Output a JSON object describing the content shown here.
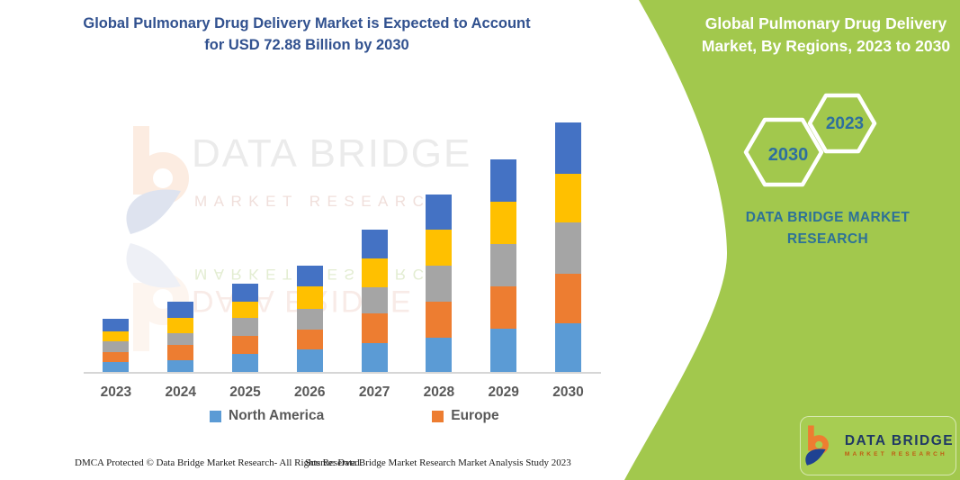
{
  "header": {
    "title_line1": "Global Pulmonary Drug Delivery Market is Expected to Account",
    "title_line2": "for USD 72.88 Billion by 2030"
  },
  "side_panel": {
    "title_line1": "Global Pulmonary Drug Delivery",
    "title_line2": "Market, By Regions, 2023 to 2030",
    "hexagon_back_label": "2030",
    "hexagon_front_label": "2023",
    "brand_line1": "DATA BRIDGE MARKET",
    "brand_line2": "RESEARCH",
    "background_color": "#A2C84D",
    "text_color": "#2D7198"
  },
  "watermark": {
    "brand": "DATA BRIDGE",
    "sub": "MARKET RESEARCH"
  },
  "footer": {
    "left": "DMCA Protected © Data Bridge Market Research-  All Rights Reserved.",
    "source": "Source: Data Bridge Market Research  Market Analysis Study 2023"
  },
  "logo_card": {
    "brand": "DATA BRIDGE",
    "sub": "MARKET RESEARCH"
  },
  "colors": {
    "title_blue": "#31518F",
    "panel_green": "#A2C84D",
    "axis_gray": "#D6D6D6",
    "label_gray": "#595959"
  },
  "chart_data": {
    "type": "bar",
    "stacked": true,
    "title": "Global Pulmonary Drug Delivery Market is Expected to Account for USD 72.88 Billion by 2030",
    "unit": "USD Billion (estimated from bar heights; only the 2030 total of 72.88 is labeled)",
    "total_2030_usd_billion": 72.88,
    "categories": [
      "2023",
      "2024",
      "2025",
      "2026",
      "2027",
      "2028",
      "2029",
      "2030"
    ],
    "series": [
      {
        "name": "North America",
        "color": "#5B9BD5",
        "values": [
          2.9,
          3.4,
          5.3,
          6.6,
          8.4,
          10.0,
          12.6,
          14.2
        ]
      },
      {
        "name": "Europe",
        "color": "#ED7D31",
        "values": [
          2.9,
          4.5,
          5.3,
          5.8,
          8.7,
          10.5,
          12.4,
          14.5
        ]
      },
      {
        "name": "unlabeled-gray",
        "color": "#A5A5A5",
        "values": [
          3.2,
          3.4,
          5.3,
          6.1,
          7.6,
          10.5,
          12.4,
          15.0
        ]
      },
      {
        "name": "unlabeled-yellow",
        "color": "#FFC000",
        "values": [
          2.9,
          4.5,
          4.7,
          6.6,
          8.4,
          10.5,
          12.4,
          14.2
        ]
      },
      {
        "name": "unlabeled-dark-blue",
        "color": "#4472C4",
        "values": [
          3.7,
          4.7,
          5.3,
          6.1,
          8.4,
          10.3,
          12.4,
          15.0
        ]
      }
    ],
    "estimated_totals_usd_billion": [
      15.6,
      20.5,
      25.9,
      31.2,
      41.5,
      51.8,
      62.2,
      72.9
    ],
    "legend_items": [
      {
        "label": "North America",
        "color": "#5B9BD5"
      },
      {
        "label": "Europe",
        "color": "#ED7D31"
      }
    ],
    "y_axis": "hidden",
    "gridlines": false,
    "legend_position": "bottom"
  }
}
